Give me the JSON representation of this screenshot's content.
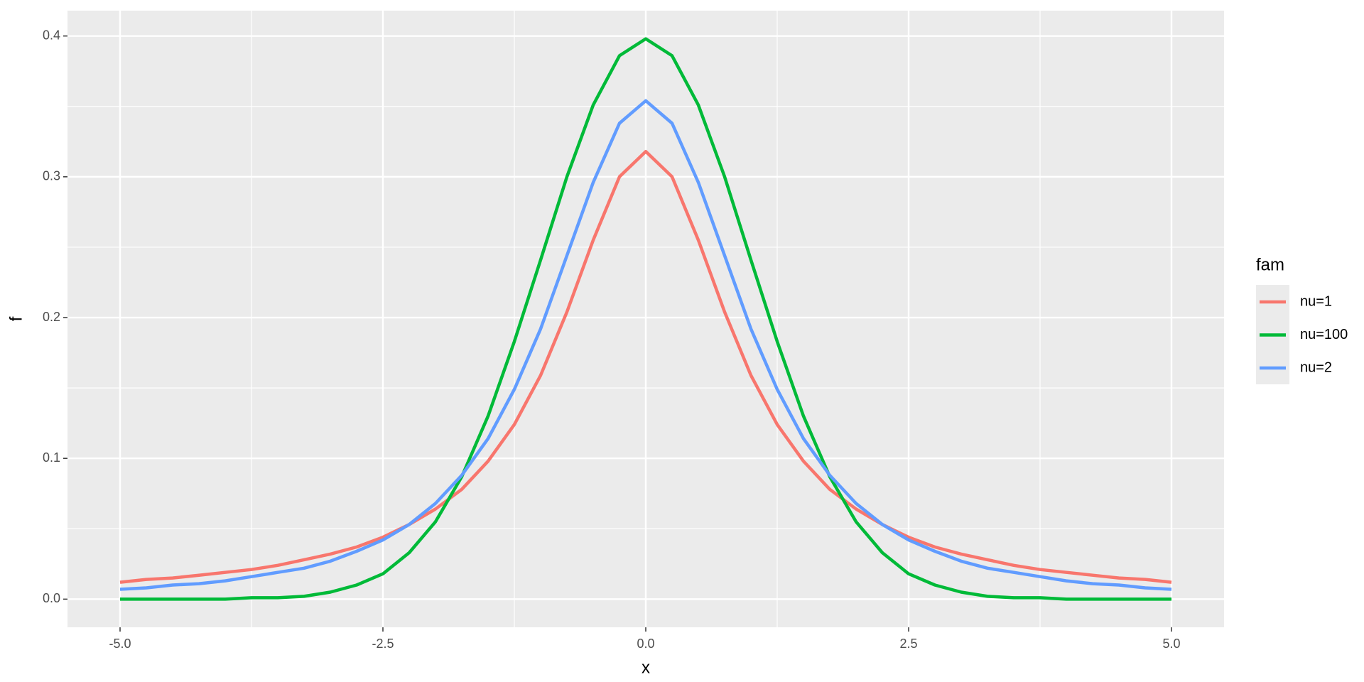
{
  "chart_data": {
    "type": "line",
    "x_label": "x",
    "y_label": "f",
    "legend_title": "fam",
    "legend": "right",
    "grid": true,
    "x": [
      -5,
      -4.75,
      -4.5,
      -4.25,
      -4,
      -3.75,
      -3.5,
      -3.25,
      -3,
      -2.75,
      -2.5,
      -2.25,
      -2,
      -1.75,
      -1.5,
      -1.25,
      -1,
      -0.75,
      -0.5,
      -0.25,
      0,
      0.25,
      0.5,
      0.75,
      1,
      1.25,
      1.5,
      1.75,
      2,
      2.25,
      2.5,
      2.75,
      3,
      3.25,
      3.5,
      3.75,
      4,
      4.25,
      4.5,
      4.75,
      5
    ],
    "series": [
      {
        "name": "nu=1",
        "color": "#F8766D",
        "values": [
          0.012,
          0.014,
          0.015,
          0.017,
          0.019,
          0.021,
          0.024,
          0.028,
          0.032,
          0.037,
          0.044,
          0.053,
          0.064,
          0.078,
          0.098,
          0.124,
          0.159,
          0.204,
          0.255,
          0.3,
          0.318,
          0.3,
          0.255,
          0.204,
          0.159,
          0.124,
          0.098,
          0.078,
          0.064,
          0.053,
          0.044,
          0.037,
          0.032,
          0.028,
          0.024,
          0.021,
          0.019,
          0.017,
          0.015,
          0.014,
          0.012
        ]
      },
      {
        "name": "nu=100",
        "color": "#00BA38",
        "values": [
          0,
          0,
          0,
          0,
          0,
          0.001,
          0.001,
          0.002,
          0.005,
          0.01,
          0.018,
          0.033,
          0.055,
          0.087,
          0.13,
          0.183,
          0.241,
          0.3,
          0.351,
          0.386,
          0.398,
          0.386,
          0.351,
          0.3,
          0.241,
          0.183,
          0.13,
          0.087,
          0.055,
          0.033,
          0.018,
          0.01,
          0.005,
          0.002,
          0.001,
          0.001,
          0,
          0,
          0,
          0,
          0
        ]
      },
      {
        "name": "nu=2",
        "color": "#619CFF",
        "values": [
          0.007,
          0.008,
          0.01,
          0.011,
          0.013,
          0.016,
          0.019,
          0.022,
          0.027,
          0.034,
          0.042,
          0.053,
          0.068,
          0.088,
          0.114,
          0.149,
          0.192,
          0.244,
          0.296,
          0.338,
          0.354,
          0.338,
          0.296,
          0.244,
          0.192,
          0.149,
          0.114,
          0.088,
          0.068,
          0.053,
          0.042,
          0.034,
          0.027,
          0.022,
          0.019,
          0.016,
          0.013,
          0.011,
          0.01,
          0.008,
          0.007
        ]
      }
    ],
    "xlim": [
      -5.5,
      5.5
    ],
    "xticks": [
      {
        "value": -5,
        "label": "-5.0"
      },
      -2.5,
      {
        "value": 0,
        "label": "0.0"
      },
      2.5,
      {
        "value": 5,
        "label": "5.0"
      }
    ],
    "ylim": [
      -0.02,
      0.418
    ],
    "yticks": [
      {
        "value": 0,
        "label": "0.0"
      },
      0.1,
      0.2,
      0.3,
      0.4
    ]
  }
}
